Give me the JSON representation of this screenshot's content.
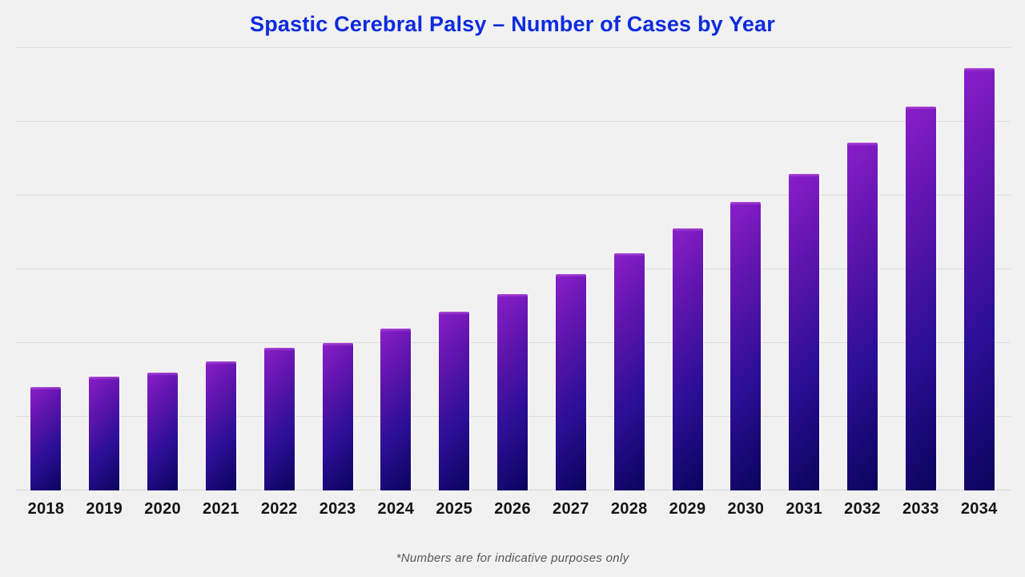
{
  "chart": {
    "title": "Spastic Cerebral Palsy – Number of Cases by Year",
    "footnote": "*Numbers are for indicative purposes only"
  },
  "chart_data": {
    "type": "bar",
    "title": "Spastic Cerebral Palsy – Number of Cases by Year",
    "xlabel": "",
    "ylabel": "",
    "categories": [
      "2018",
      "2019",
      "2020",
      "2021",
      "2022",
      "2023",
      "2024",
      "2025",
      "2026",
      "2027",
      "2028",
      "2029",
      "2030",
      "2031",
      "2032",
      "2033",
      "2034"
    ],
    "values": [
      1400,
      1540,
      1600,
      1750,
      1930,
      2000,
      2200,
      2420,
      2660,
      2930,
      3220,
      3550,
      3910,
      4290,
      4720,
      5210,
      5730
    ],
    "values_note": "y-axis has no tick labels; values estimated in cases assuming one gridline interval = 1000",
    "ylim": [
      0,
      6000
    ],
    "gridline_interval": 1000,
    "grid": "horizontal-only",
    "y_tick_labels_visible": false,
    "legend": "none",
    "annotations": [
      "*Numbers are for indicative purposes only"
    ],
    "colors": {
      "background": "#f1f1f2",
      "title": "#0d2bdd",
      "gridline": "#dcdcdc",
      "x_label": "#141414",
      "footnote": "#565656",
      "bar_gradient": [
        "#8a1ec9",
        "#5a14aa",
        "#2c0f97",
        "#0a045c"
      ],
      "bar_gradient_angle_deg": 133
    }
  }
}
